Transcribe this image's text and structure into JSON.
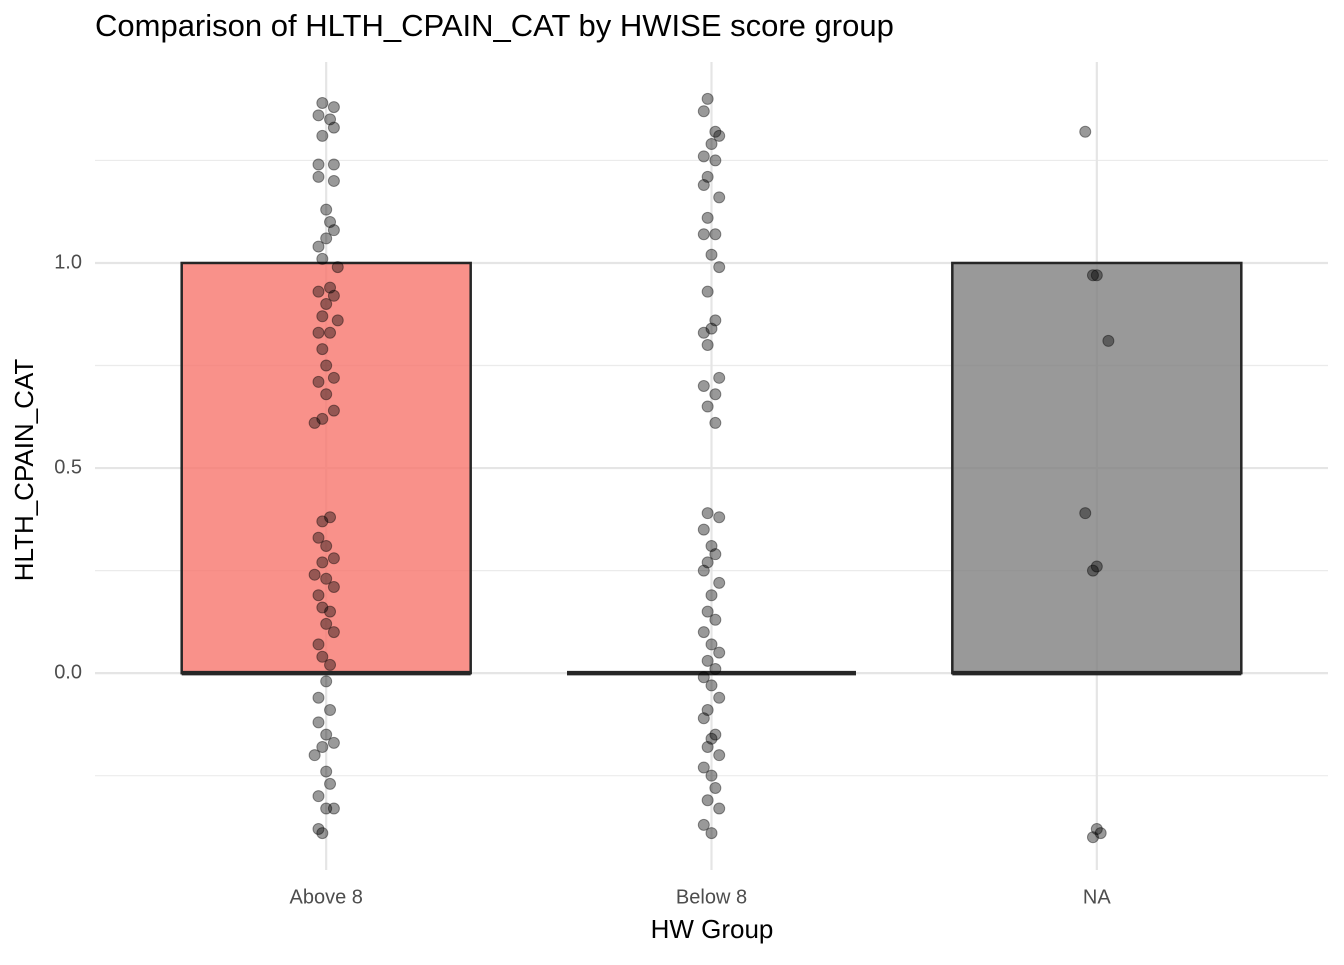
{
  "chart_data": {
    "type": "box",
    "title": "Comparison of HLTH_CPAIN_CAT by HWISE score group",
    "x_label": "HW Group",
    "y_label": "HLTH_CPAIN_CAT",
    "categories": [
      "Above 8",
      "Below 8",
      "NA"
    ],
    "xlim": [
      0.4,
      3.6
    ],
    "ylim": [
      -0.48,
      1.49
    ],
    "yticks": [
      {
        "value": 0,
        "label": "0.0"
      },
      {
        "value": 0.5,
        "label": "0.5"
      },
      {
        "value": 1,
        "label": "1.0"
      }
    ],
    "grid": true,
    "boxes": [
      {
        "color": "#F8766D",
        "q1": 0,
        "median": 0,
        "q3": 1,
        "points_x": [
          0.99,
          1.02,
          0.98,
          1.01,
          1.02,
          0.99,
          0.98,
          1.02,
          0.98,
          1.02,
          1.0,
          1.01,
          1.02,
          1.0,
          0.98,
          0.99,
          1.03,
          0.98,
          1.01,
          1.02,
          1.0,
          0.99,
          1.03,
          0.98,
          1.01,
          0.99,
          1.0,
          0.98,
          1.02,
          1.0,
          0.99,
          0.97,
          1.02,
          1.01,
          0.99,
          0.98,
          1.0,
          1.02,
          0.99,
          0.97,
          1.0,
          1.02,
          0.98,
          0.99,
          1.01,
          1.0,
          1.02,
          0.98,
          0.99,
          1.01,
          1.0,
          0.98,
          1.01,
          0.98,
          1.0,
          0.99,
          1.02,
          0.97,
          1.0,
          1.01,
          0.98,
          1.0,
          1.02,
          0.98,
          0.99
        ],
        "points_y": [
          1.39,
          1.38,
          1.36,
          1.35,
          1.33,
          1.31,
          1.24,
          1.24,
          1.21,
          1.2,
          1.13,
          1.1,
          1.08,
          1.06,
          1.04,
          1.01,
          0.99,
          0.93,
          0.94,
          0.92,
          0.9,
          0.87,
          0.86,
          0.83,
          0.83,
          0.79,
          0.75,
          0.71,
          0.72,
          0.68,
          0.62,
          0.61,
          0.64,
          0.38,
          0.37,
          0.33,
          0.31,
          0.28,
          0.27,
          0.24,
          0.23,
          0.21,
          0.19,
          0.16,
          0.15,
          0.12,
          0.1,
          0.07,
          0.04,
          0.02,
          -0.02,
          -0.06,
          -0.09,
          -0.12,
          -0.15,
          -0.18,
          -0.17,
          -0.2,
          -0.24,
          -0.27,
          -0.3,
          -0.33,
          -0.33,
          -0.38,
          -0.39
        ]
      },
      {
        "color": "#00BFC4",
        "q1": 0,
        "median": 0,
        "q3": 0,
        "points_x": [
          1.99,
          1.98,
          2.01,
          2.02,
          2.0,
          1.98,
          2.01,
          1.99,
          1.98,
          2.02,
          1.99,
          2.01,
          1.98,
          2.0,
          2.02,
          1.99,
          2.01,
          1.98,
          2.0,
          1.99,
          1.98,
          2.02,
          2.01,
          1.99,
          2.01,
          1.99,
          2.02,
          1.98,
          2.0,
          2.01,
          1.99,
          1.98,
          2.02,
          2.0,
          1.99,
          2.01,
          1.98,
          2.0,
          2.02,
          1.99,
          2.01,
          1.98,
          2.0,
          2.02,
          1.99,
          1.98,
          2.01,
          2.0,
          1.99,
          2.02,
          1.98,
          2.0,
          2.01,
          1.99,
          2.02,
          1.98,
          2.0
        ],
        "points_y": [
          1.4,
          1.37,
          1.32,
          1.31,
          1.29,
          1.26,
          1.25,
          1.21,
          1.19,
          1.16,
          1.11,
          1.07,
          1.07,
          1.02,
          0.99,
          0.93,
          0.86,
          0.83,
          0.84,
          0.8,
          0.7,
          0.72,
          0.68,
          0.65,
          0.61,
          0.39,
          0.38,
          0.35,
          0.31,
          0.29,
          0.27,
          0.25,
          0.22,
          0.19,
          0.15,
          0.13,
          0.1,
          0.07,
          0.05,
          0.03,
          0.01,
          -0.01,
          -0.03,
          -0.06,
          -0.09,
          -0.11,
          -0.15,
          -0.16,
          -0.18,
          -0.2,
          -0.23,
          -0.25,
          -0.28,
          -0.31,
          -0.33,
          -0.37,
          -0.39
        ]
      },
      {
        "color": "#7F7F7F",
        "q1": 0,
        "median": 0,
        "q3": 1,
        "points_x": [
          2.97,
          2.99,
          3.0,
          3.03,
          2.97,
          3.0,
          2.99,
          3.0,
          3.01,
          2.99
        ],
        "points_y": [
          1.32,
          0.97,
          0.97,
          0.81,
          0.39,
          0.26,
          0.25,
          -0.38,
          -0.39,
          -0.4
        ]
      }
    ]
  }
}
